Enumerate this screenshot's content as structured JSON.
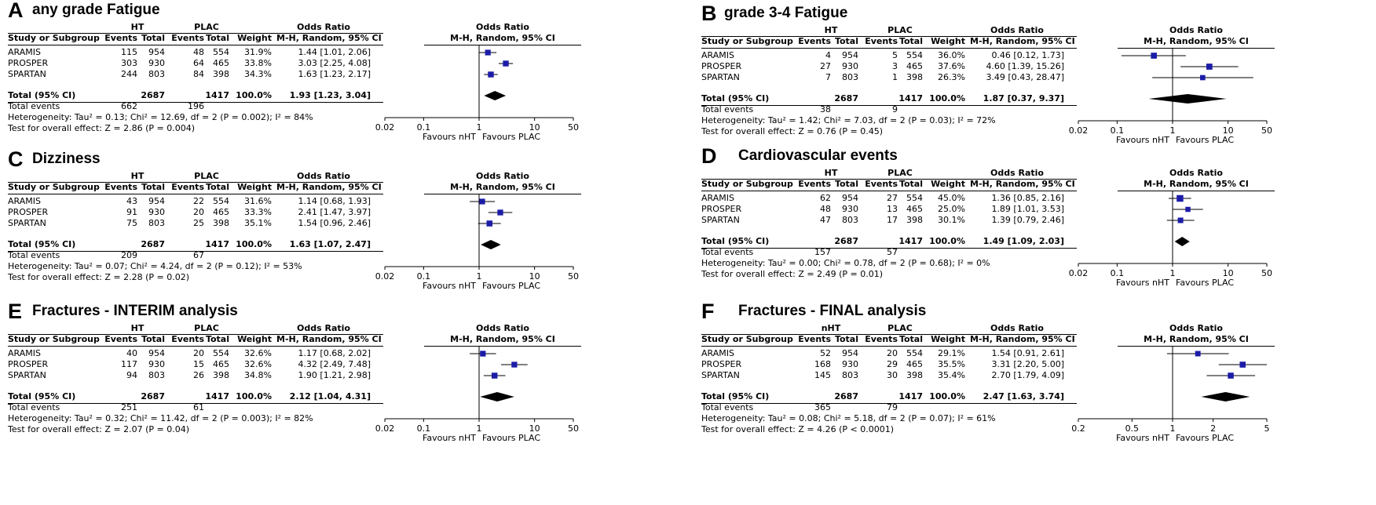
{
  "figure": {
    "panels": [
      {
        "label": "A",
        "title": "any grade Fatigue",
        "group1": "HT",
        "group2": "PLAC",
        "header": {
          "study": "Study or Subgroup",
          "events": "Events",
          "total": "Total",
          "weight": "Weight",
          "or": "Odds Ratio",
          "method": "M-H, Random, 95% CI"
        },
        "studies": [
          {
            "name": "ARAMIS",
            "e1": "115",
            "n1": "954",
            "e2": "48",
            "n2": "554",
            "weight": "31.9%",
            "ci": "1.44 [1.01, 2.06]",
            "or": 1.44,
            "lo": 1.01,
            "hi": 2.06,
            "w": 31.9
          },
          {
            "name": "PROSPER",
            "e1": "303",
            "n1": "930",
            "e2": "64",
            "n2": "465",
            "weight": "33.8%",
            "ci": "3.03 [2.25, 4.08]",
            "or": 3.03,
            "lo": 2.25,
            "hi": 4.08,
            "w": 33.8
          },
          {
            "name": "SPARTAN",
            "e1": "244",
            "n1": "803",
            "e2": "84",
            "n2": "398",
            "weight": "34.3%",
            "ci": "1.63 [1.23, 2.17]",
            "or": 1.63,
            "lo": 1.23,
            "hi": 2.17,
            "w": 34.3
          }
        ],
        "total": {
          "label": "Total (95% CI)",
          "n1": "2687",
          "n2": "1417",
          "weight": "100.0%",
          "ci": "1.93 [1.23, 3.04]",
          "or": 1.93,
          "lo": 1.23,
          "hi": 3.04
        },
        "events": {
          "label": "Total events",
          "e1": "662",
          "e2": "196"
        },
        "heterogeneity": "Heterogeneity: Tau² = 0.13; Chi² = 12.69, df = 2 (P = 0.002); I² = 84%",
        "overall": "Test for overall effect: Z = 2.86 (P = 0.004)",
        "axis": {
          "min": 0.02,
          "max": 50,
          "ticks": [
            {
              "v": 0.02,
              "l": "0.02"
            },
            {
              "v": 0.1,
              "l": "0.1"
            },
            {
              "v": 1,
              "l": "1"
            },
            {
              "v": 10,
              "l": "10"
            },
            {
              "v": 50,
              "l": "50"
            }
          ]
        },
        "favours_left": "Favours nHT",
        "favours_right": "Favours PLAC"
      },
      {
        "label": "B",
        "title": "grade 3-4 Fatigue",
        "group1": "HT",
        "group2": "PLAC",
        "header": {
          "study": "Study or Subgroup",
          "events": "Events",
          "total": "Total",
          "weight": "Weight",
          "or": "Odds Ratio",
          "method": "M-H, Random, 95% CI"
        },
        "studies": [
          {
            "name": "ARAMIS",
            "e1": "4",
            "n1": "954",
            "e2": "5",
            "n2": "554",
            "weight": "36.0%",
            "ci": "0.46 [0.12, 1.73]",
            "or": 0.46,
            "lo": 0.12,
            "hi": 1.73,
            "w": 36.0
          },
          {
            "name": "PROSPER",
            "e1": "27",
            "n1": "930",
            "e2": "3",
            "n2": "465",
            "weight": "37.6%",
            "ci": "4.60 [1.39, 15.26]",
            "or": 4.6,
            "lo": 1.39,
            "hi": 15.26,
            "w": 37.6
          },
          {
            "name": "SPARTAN",
            "e1": "7",
            "n1": "803",
            "e2": "1",
            "n2": "398",
            "weight": "26.3%",
            "ci": "3.49 [0.43, 28.47]",
            "or": 3.49,
            "lo": 0.43,
            "hi": 28.47,
            "w": 26.3
          }
        ],
        "total": {
          "label": "Total (95% CI)",
          "n1": "2687",
          "n2": "1417",
          "weight": "100.0%",
          "ci": "1.87 [0.37, 9.37]",
          "or": 1.87,
          "lo": 0.37,
          "hi": 9.37
        },
        "events": {
          "label": "Total events",
          "e1": "38",
          "e2": "9"
        },
        "heterogeneity": "Heterogeneity: Tau² = 1.42; Chi² = 7.03, df = 2 (P = 0.03); I² = 72%",
        "overall": "Test for overall effect: Z = 0.76 (P = 0.45)",
        "axis": {
          "min": 0.02,
          "max": 50,
          "ticks": [
            {
              "v": 0.02,
              "l": "0.02"
            },
            {
              "v": 0.1,
              "l": "0.1"
            },
            {
              "v": 1,
              "l": "1"
            },
            {
              "v": 10,
              "l": "10"
            },
            {
              "v": 50,
              "l": "50"
            }
          ]
        },
        "favours_left": "Favours nHT",
        "favours_right": "Favours PLAC"
      },
      {
        "label": "C",
        "title": "Dizziness",
        "group1": "HT",
        "group2": "PLAC",
        "header": {
          "study": "Study or Subgroup",
          "events": "Events",
          "total": "Total",
          "weight": "Weight",
          "or": "Odds Ratio",
          "method": "M-H, Random, 95% CI"
        },
        "studies": [
          {
            "name": "ARAMIS",
            "e1": "43",
            "n1": "954",
            "e2": "22",
            "n2": "554",
            "weight": "31.6%",
            "ci": "1.14 [0.68, 1.93]",
            "or": 1.14,
            "lo": 0.68,
            "hi": 1.93,
            "w": 31.6
          },
          {
            "name": "PROSPER",
            "e1": "91",
            "n1": "930",
            "e2": "20",
            "n2": "465",
            "weight": "33.3%",
            "ci": "2.41 [1.47, 3.97]",
            "or": 2.41,
            "lo": 1.47,
            "hi": 3.97,
            "w": 33.3
          },
          {
            "name": "SPARTAN",
            "e1": "75",
            "n1": "803",
            "e2": "25",
            "n2": "398",
            "weight": "35.1%",
            "ci": "1.54 [0.96, 2.46]",
            "or": 1.54,
            "lo": 0.96,
            "hi": 2.46,
            "w": 35.1
          }
        ],
        "total": {
          "label": "Total (95% CI)",
          "n1": "2687",
          "n2": "1417",
          "weight": "100.0%",
          "ci": "1.63 [1.07, 2.47]",
          "or": 1.63,
          "lo": 1.07,
          "hi": 2.47
        },
        "events": {
          "label": "Total events",
          "e1": "209",
          "e2": "67"
        },
        "heterogeneity": "Heterogeneity: Tau² = 0.07; Chi² = 4.24, df = 2 (P = 0.12); I² = 53%",
        "overall": "Test for overall effect: Z = 2.28 (P = 0.02)",
        "axis": {
          "min": 0.02,
          "max": 50,
          "ticks": [
            {
              "v": 0.02,
              "l": "0.02"
            },
            {
              "v": 0.1,
              "l": "0.1"
            },
            {
              "v": 1,
              "l": "1"
            },
            {
              "v": 10,
              "l": "10"
            },
            {
              "v": 50,
              "l": "50"
            }
          ]
        },
        "favours_left": "Favours nHT",
        "favours_right": "Favours PLAC"
      },
      {
        "label": "D",
        "title": "Cardiovascular events",
        "group1": "HT",
        "group2": "PLAC",
        "header": {
          "study": "Study or Subgroup",
          "events": "Events",
          "total": "Total",
          "weight": "Weight",
          "or": "Odds Ratio",
          "method": "M-H, Random, 95% CI"
        },
        "studies": [
          {
            "name": "ARAMIS",
            "e1": "62",
            "n1": "954",
            "e2": "27",
            "n2": "554",
            "weight": "45.0%",
            "ci": "1.36 [0.85, 2.16]",
            "or": 1.36,
            "lo": 0.85,
            "hi": 2.16,
            "w": 45.0
          },
          {
            "name": "PROSPER",
            "e1": "48",
            "n1": "930",
            "e2": "13",
            "n2": "465",
            "weight": "25.0%",
            "ci": "1.89 [1.01, 3.53]",
            "or": 1.89,
            "lo": 1.01,
            "hi": 3.53,
            "w": 25.0
          },
          {
            "name": "SPARTAN",
            "e1": "47",
            "n1": "803",
            "e2": "17",
            "n2": "398",
            "weight": "30.1%",
            "ci": "1.39 [0.79, 2.46]",
            "or": 1.39,
            "lo": 0.79,
            "hi": 2.46,
            "w": 30.1
          }
        ],
        "total": {
          "label": "Total (95% CI)",
          "n1": "2687",
          "n2": "1417",
          "weight": "100.0%",
          "ci": "1.49 [1.09, 2.03]",
          "or": 1.49,
          "lo": 1.09,
          "hi": 2.03
        },
        "events": {
          "label": "Total events",
          "e1": "157",
          "e2": "57"
        },
        "heterogeneity": "Heterogeneity: Tau² = 0.00; Chi² = 0.78, df = 2 (P = 0.68); I² = 0%",
        "overall": "Test for overall effect: Z = 2.49 (P = 0.01)",
        "axis": {
          "min": 0.02,
          "max": 50,
          "ticks": [
            {
              "v": 0.02,
              "l": "0.02"
            },
            {
              "v": 0.1,
              "l": "0.1"
            },
            {
              "v": 1,
              "l": "1"
            },
            {
              "v": 10,
              "l": "10"
            },
            {
              "v": 50,
              "l": "50"
            }
          ]
        },
        "favours_left": "Favours nHT",
        "favours_right": "Favours PLAC"
      },
      {
        "label": "E",
        "title": "Fractures - INTERIM analysis",
        "group1": "HT",
        "group2": "PLAC",
        "header": {
          "study": "Study or Subgroup",
          "events": "Events",
          "total": "Total",
          "weight": "Weight",
          "or": "Odds Ratio",
          "method": "M-H, Random, 95% CI"
        },
        "studies": [
          {
            "name": "ARAMIS",
            "e1": "40",
            "n1": "954",
            "e2": "20",
            "n2": "554",
            "weight": "32.6%",
            "ci": "1.17 [0.68, 2.02]",
            "or": 1.17,
            "lo": 0.68,
            "hi": 2.02,
            "w": 32.6
          },
          {
            "name": "PROSPER",
            "e1": "117",
            "n1": "930",
            "e2": "15",
            "n2": "465",
            "weight": "32.6%",
            "ci": "4.32 [2.49, 7.48]",
            "or": 4.32,
            "lo": 2.49,
            "hi": 7.48,
            "w": 32.6
          },
          {
            "name": "SPARTAN",
            "e1": "94",
            "n1": "803",
            "e2": "26",
            "n2": "398",
            "weight": "34.8%",
            "ci": "1.90 [1.21, 2.98]",
            "or": 1.9,
            "lo": 1.21,
            "hi": 2.98,
            "w": 34.8
          }
        ],
        "total": {
          "label": "Total (95% CI)",
          "n1": "2687",
          "n2": "1417",
          "weight": "100.0%",
          "ci": "2.12 [1.04, 4.31]",
          "or": 2.12,
          "lo": 1.04,
          "hi": 4.31
        },
        "events": {
          "label": "Total events",
          "e1": "251",
          "e2": "61"
        },
        "heterogeneity": "Heterogeneity: Tau² = 0.32; Chi² = 11.42, df = 2 (P = 0.003); I² = 82%",
        "overall": "Test for overall effect: Z = 2.07 (P = 0.04)",
        "axis": {
          "min": 0.02,
          "max": 50,
          "ticks": [
            {
              "v": 0.02,
              "l": "0.02"
            },
            {
              "v": 0.1,
              "l": "0.1"
            },
            {
              "v": 1,
              "l": "1"
            },
            {
              "v": 10,
              "l": "10"
            },
            {
              "v": 50,
              "l": "50"
            }
          ]
        },
        "favours_left": "Favours nHT",
        "favours_right": "Favours PLAC"
      },
      {
        "label": "F",
        "title": "Fractures - FINAL analysis",
        "group1": "nHT",
        "group2": "PLAC",
        "header": {
          "study": "Study or Subgroup",
          "events": "Events",
          "total": "Total",
          "weight": "Weight",
          "or": "Odds Ratio",
          "method": "M-H, Random, 95% CI"
        },
        "studies": [
          {
            "name": "ARAMIS",
            "e1": "52",
            "n1": "954",
            "e2": "20",
            "n2": "554",
            "weight": "29.1%",
            "ci": "1.54 [0.91, 2.61]",
            "or": 1.54,
            "lo": 0.91,
            "hi": 2.61,
            "w": 29.1
          },
          {
            "name": "PROSPER",
            "e1": "168",
            "n1": "930",
            "e2": "29",
            "n2": "465",
            "weight": "35.5%",
            "ci": "3.31 [2.20, 5.00]",
            "or": 3.31,
            "lo": 2.2,
            "hi": 5.0,
            "w": 35.5
          },
          {
            "name": "SPARTAN",
            "e1": "145",
            "n1": "803",
            "e2": "30",
            "n2": "398",
            "weight": "35.4%",
            "ci": "2.70 [1.79, 4.09]",
            "or": 2.7,
            "lo": 1.79,
            "hi": 4.09,
            "w": 35.4
          }
        ],
        "total": {
          "label": "Total (95% CI)",
          "n1": "2687",
          "n2": "1417",
          "weight": "100.0%",
          "ci": "2.47 [1.63, 3.74]",
          "or": 2.47,
          "lo": 1.63,
          "hi": 3.74
        },
        "events": {
          "label": "Total events",
          "e1": "365",
          "e2": "79"
        },
        "heterogeneity": "Heterogeneity: Tau² = 0.08; Chi² = 5.18, df = 2 (P = 0.07); I² = 61%",
        "overall": "Test for overall effect: Z = 4.26 (P < 0.0001)",
        "axis": {
          "min": 0.2,
          "max": 5,
          "ticks": [
            {
              "v": 0.2,
              "l": "0.2"
            },
            {
              "v": 0.5,
              "l": "0.5"
            },
            {
              "v": 1,
              "l": "1"
            },
            {
              "v": 2,
              "l": "2"
            },
            {
              "v": 5,
              "l": "5"
            }
          ]
        },
        "favours_left": "Favours nHT",
        "favours_right": "Favours PLAC"
      }
    ]
  },
  "colors": {
    "marker": "#1c1ca8",
    "diamond": "#000000"
  }
}
